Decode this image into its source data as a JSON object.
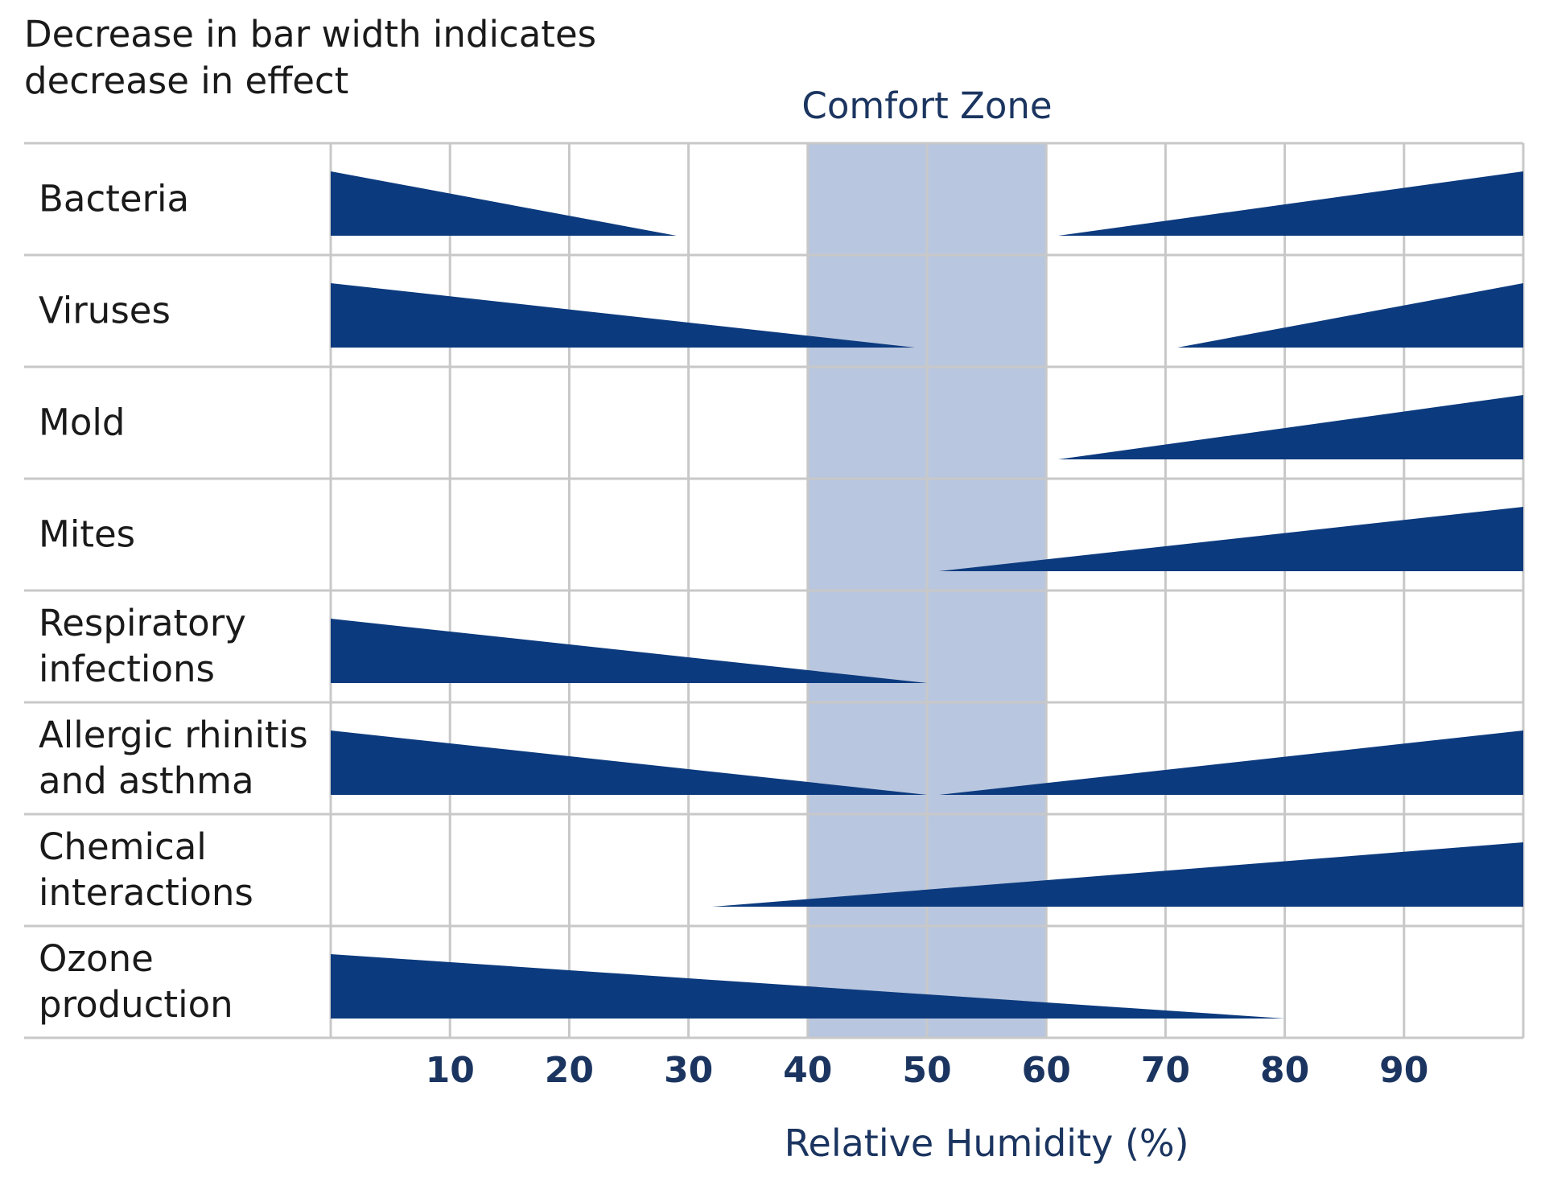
{
  "note": {
    "line1": "Decrease in bar width indicates",
    "line2": "decrease in effect"
  },
  "comfort_zone": {
    "label": "Comfort Zone",
    "range": [
      40,
      60
    ]
  },
  "colors": {
    "bar": "#0c3a7e",
    "zone": "#b8c6df",
    "grid": "#c8c8c8",
    "axis_text": "#1b3560",
    "text": "#1a1a1a"
  },
  "chart_data": {
    "type": "bar",
    "title": "",
    "xlabel": "Relative Humidity (%)",
    "xlim": [
      0,
      100
    ],
    "xticks": [
      10,
      20,
      30,
      40,
      50,
      60,
      70,
      80,
      90
    ],
    "grid": true,
    "categories": [
      {
        "lines": [
          "Bacteria"
        ],
        "segments": [
          {
            "from": 0,
            "to": 29,
            "width_at_from": 1,
            "width_at_to": 0
          },
          {
            "from": 61,
            "to": 100,
            "width_at_from": 0,
            "width_at_to": 1
          }
        ]
      },
      {
        "lines": [
          "Viruses"
        ],
        "segments": [
          {
            "from": 0,
            "to": 49,
            "width_at_from": 1,
            "width_at_to": 0
          },
          {
            "from": 71,
            "to": 100,
            "width_at_from": 0,
            "width_at_to": 1
          }
        ]
      },
      {
        "lines": [
          "Mold"
        ],
        "segments": [
          {
            "from": 61,
            "to": 100,
            "width_at_from": 0,
            "width_at_to": 1
          }
        ]
      },
      {
        "lines": [
          "Mites"
        ],
        "segments": [
          {
            "from": 51,
            "to": 100,
            "width_at_from": 0,
            "width_at_to": 1
          }
        ]
      },
      {
        "lines": [
          "Respiratory",
          "infections"
        ],
        "segments": [
          {
            "from": 0,
            "to": 50,
            "width_at_from": 1,
            "width_at_to": 0
          }
        ]
      },
      {
        "lines": [
          "Allergic rhinitis",
          "and asthma"
        ],
        "segments": [
          {
            "from": 0,
            "to": 50,
            "width_at_from": 1,
            "width_at_to": 0
          },
          {
            "from": 51,
            "to": 100,
            "width_at_from": 0,
            "width_at_to": 1
          }
        ]
      },
      {
        "lines": [
          "Chemical",
          "interactions"
        ],
        "segments": [
          {
            "from": 32,
            "to": 100,
            "width_at_from": 0,
            "width_at_to": 1
          }
        ]
      },
      {
        "lines": [
          "Ozone",
          "production"
        ],
        "segments": [
          {
            "from": 0,
            "to": 80,
            "width_at_from": 1,
            "width_at_to": 0
          }
        ]
      }
    ]
  }
}
